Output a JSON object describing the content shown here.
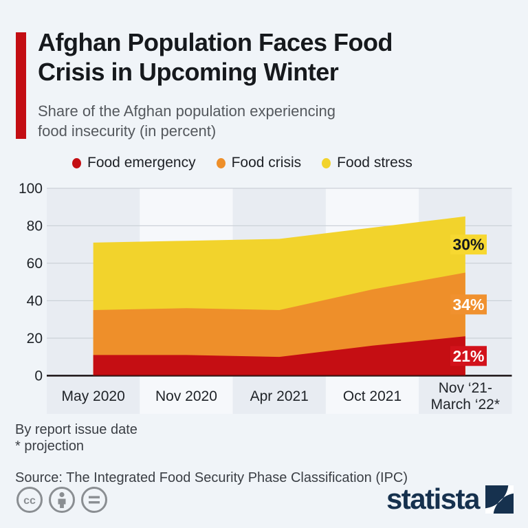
{
  "header": {
    "title_lines": [
      "Afghan Population Faces Food",
      "Crisis in Upcoming Winter"
    ],
    "subtitle_lines": [
      "Share of the Afghan population experiencing",
      "food insecurity (in percent)"
    ]
  },
  "legend": [
    {
      "label": "Food emergency",
      "color": "#c40e13"
    },
    {
      "label": "Food crisis",
      "color": "#ee8f2a"
    },
    {
      "label": "Food stress",
      "color": "#f2d32c"
    }
  ],
  "chart_data": {
    "type": "area",
    "stacked": true,
    "title": "Afghan Population Faces Food Crisis in Upcoming Winter",
    "subtitle": "Share of the Afghan population experiencing food insecurity (in percent)",
    "categories": [
      "May 2020",
      "Nov 2020",
      "Apr 2021",
      "Oct 2021",
      "Nov ‘21-\nMarch ‘22*"
    ],
    "series": [
      {
        "name": "Food emergency",
        "color": "#c50e13",
        "values": [
          11,
          11,
          10,
          16,
          21
        ],
        "final_label": "21%",
        "label_bg": "#d2121b",
        "label_color": "#ffffff"
      },
      {
        "name": "Food crisis",
        "color": "#ee8f2a",
        "values": [
          24,
          25,
          25,
          30,
          34
        ],
        "final_label": "34%",
        "label_bg": "#f0912f",
        "label_color": "#ffffff"
      },
      {
        "name": "Food stress",
        "color": "#f2d32c",
        "values": [
          36,
          36,
          38,
          33,
          30
        ],
        "final_label": "30%",
        "label_bg": "#f7d831",
        "label_color": "#15181c"
      }
    ],
    "stacked_totals": [
      71,
      72,
      73,
      79,
      85
    ],
    "ylim": [
      0,
      100
    ],
    "yticks": [
      0,
      20,
      40,
      60,
      80,
      100
    ],
    "grid": true,
    "legend_position": "top"
  },
  "footer": {
    "note1": "By report issue date",
    "note2": "* projection",
    "source": "Source: The Integrated Food Security Phase Classification (IPC)"
  },
  "branding": {
    "logo_text": "statista",
    "cc_icons": [
      "cc",
      "attribution",
      "nd"
    ]
  },
  "colors": {
    "page_bg": "#f0f4f8",
    "accent_red": "#c30d13",
    "band_dark": "#e8ecf2",
    "band_light": "#f6f8fb",
    "gridline": "#ccd1d8",
    "axis_line": "#17191d",
    "tick_text": "#1e2227",
    "statista_navy": "#16314e",
    "cc_gray": "#8a8e92"
  }
}
